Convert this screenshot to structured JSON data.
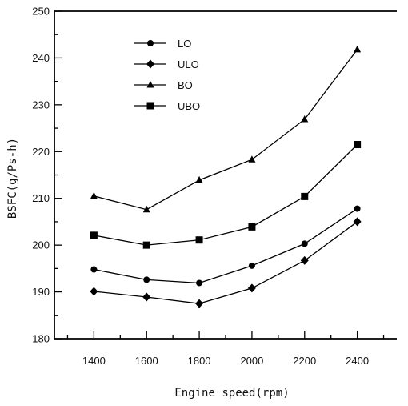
{
  "chart_data": {
    "type": "line",
    "title": "",
    "xlabel": "Engine speed(rpm)",
    "ylabel": "BSFC(g/Ps-h)",
    "x": [
      1400,
      1600,
      1800,
      2000,
      2200,
      2400
    ],
    "xlim": [
      1250,
      2550
    ],
    "ylim": [
      180,
      250
    ],
    "xticks": [
      1400,
      1600,
      1800,
      2000,
      2200,
      2400
    ],
    "yticks": [
      180,
      190,
      200,
      210,
      220,
      230,
      240,
      250
    ],
    "grid": false,
    "legend_position": "top-left",
    "series": [
      {
        "name": "LO",
        "marker": "circle",
        "values": [
          194.8,
          192.6,
          191.9,
          195.6,
          200.3,
          207.8
        ]
      },
      {
        "name": "ULO",
        "marker": "diamond",
        "values": [
          190.1,
          188.9,
          187.5,
          190.8,
          196.7,
          205.0
        ]
      },
      {
        "name": "BO",
        "marker": "triangle",
        "values": [
          210.5,
          207.6,
          213.9,
          218.3,
          226.9,
          241.8
        ]
      },
      {
        "name": "UBO",
        "marker": "square",
        "values": [
          202.1,
          200.0,
          201.1,
          203.9,
          210.4,
          221.5
        ]
      }
    ]
  }
}
